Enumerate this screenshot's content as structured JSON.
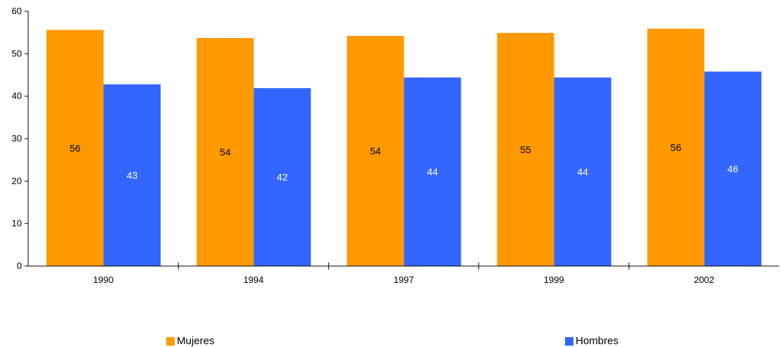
{
  "chart_data": {
    "type": "bar",
    "categories": [
      "1990",
      "1994",
      "1997",
      "1999",
      "2002"
    ],
    "series": [
      {
        "name": "Mujeres",
        "color": "#FF9900",
        "values": [
          55.6,
          53.7,
          54.2,
          54.9,
          55.9
        ],
        "labels": [
          "56",
          "54",
          "54",
          "55",
          "56"
        ]
      },
      {
        "name": "Hombres",
        "color": "#3366FF",
        "values": [
          42.8,
          41.9,
          44.4,
          44.4,
          45.8
        ],
        "labels": [
          "43",
          "42",
          "44",
          "44",
          "46"
        ]
      }
    ],
    "yticks": [
      "0",
      "10",
      "20",
      "30",
      "40",
      "50",
      "60"
    ],
    "ylim": [
      0,
      60
    ],
    "xlabel": "",
    "ylabel": "",
    "title": "",
    "grid": false,
    "legend_position": "bottom"
  }
}
